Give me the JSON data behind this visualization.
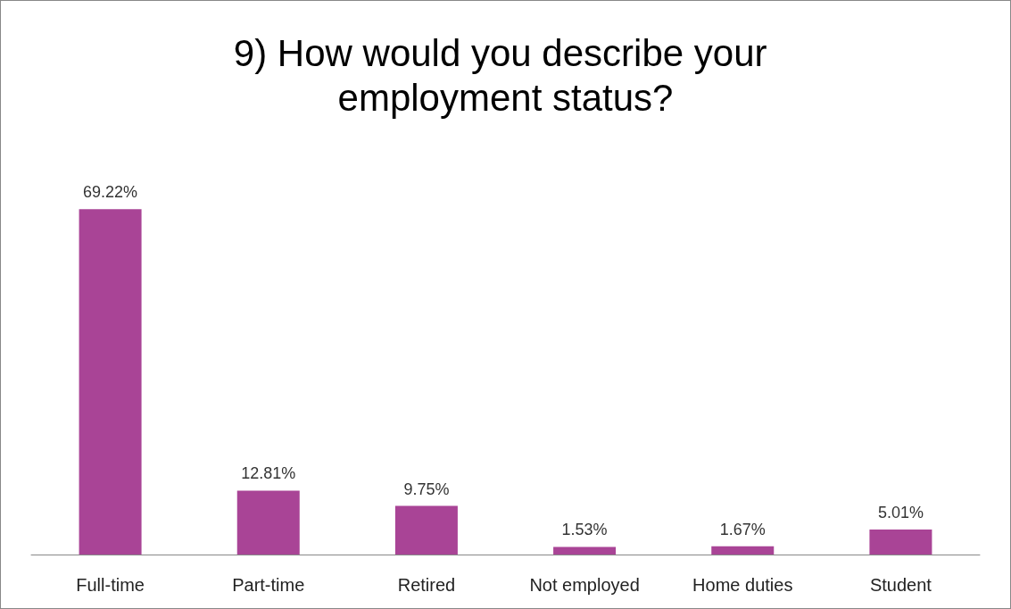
{
  "chart_data": {
    "type": "bar",
    "title": "9) How would you describe your employment status?",
    "categories": [
      "Full-time",
      "Part-time",
      "Retired",
      "Not employed",
      "Home duties",
      "Student"
    ],
    "values": [
      69.22,
      12.81,
      9.75,
      1.53,
      1.67,
      5.01
    ],
    "value_labels": [
      "69.22%",
      "12.81%",
      "9.75%",
      "1.53%",
      "1.67%",
      "5.01%"
    ],
    "color": "#a94496"
  }
}
